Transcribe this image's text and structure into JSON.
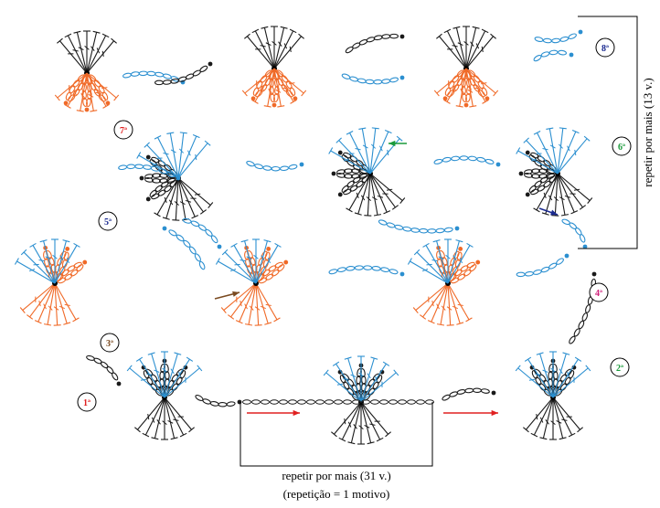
{
  "rows": [
    {
      "label": "1ª"
    },
    {
      "label": "2ª"
    },
    {
      "label": "3ª"
    },
    {
      "label": "4ª"
    },
    {
      "label": "5ª"
    },
    {
      "label": "6ª"
    },
    {
      "label": "7ª"
    },
    {
      "label": "8ª"
    }
  ],
  "repeat_horizontal": {
    "text": "repetir por mais (31 v.)",
    "note": "(repetição = 1 motivo)"
  },
  "repeat_vertical": {
    "text": "repetir por mais (13 v.)"
  }
}
